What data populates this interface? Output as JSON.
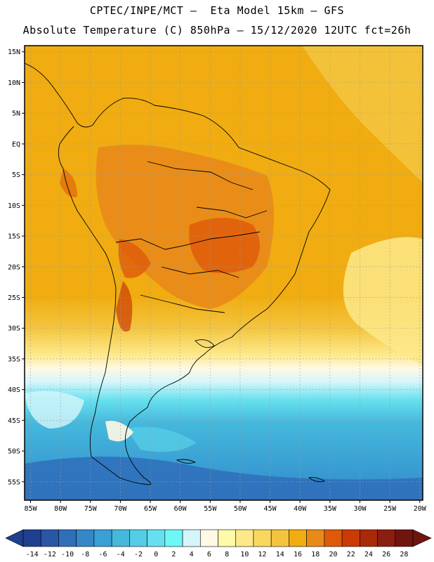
{
  "header": {
    "line1": "CPTEC/INPE/MCT —  Eta Model 15km — GFS",
    "line2": "Absolute Temperature (C) 850hPa — 15/12/2020 12UTC fct=26h"
  },
  "map": {
    "lat_range": [
      -58,
      16
    ],
    "lon_range": [
      -86,
      -19.5
    ],
    "lat_ticks": [
      {
        "value": 15,
        "label": "15N"
      },
      {
        "value": 10,
        "label": "10N"
      },
      {
        "value": 5,
        "label": "5N"
      },
      {
        "value": 0,
        "label": "EQ"
      },
      {
        "value": -5,
        "label": "5S"
      },
      {
        "value": -10,
        "label": "10S"
      },
      {
        "value": -15,
        "label": "15S"
      },
      {
        "value": -20,
        "label": "20S"
      },
      {
        "value": -25,
        "label": "25S"
      },
      {
        "value": -30,
        "label": "30S"
      },
      {
        "value": -35,
        "label": "35S"
      },
      {
        "value": -40,
        "label": "40S"
      },
      {
        "value": -45,
        "label": "45S"
      },
      {
        "value": -50,
        "label": "50S"
      },
      {
        "value": -55,
        "label": "55S"
      }
    ],
    "lon_ticks": [
      {
        "value": -85,
        "label": "85W"
      },
      {
        "value": -80,
        "label": "80W"
      },
      {
        "value": -75,
        "label": "75W"
      },
      {
        "value": -70,
        "label": "70W"
      },
      {
        "value": -65,
        "label": "65W"
      },
      {
        "value": -60,
        "label": "60W"
      },
      {
        "value": -55,
        "label": "55W"
      },
      {
        "value": -50,
        "label": "50W"
      },
      {
        "value": -45,
        "label": "45W"
      },
      {
        "value": -40,
        "label": "40W"
      },
      {
        "value": -35,
        "label": "35W"
      },
      {
        "value": -30,
        "label": "30W"
      },
      {
        "value": -25,
        "label": "25W"
      },
      {
        "value": -20,
        "label": "20W"
      }
    ],
    "grid": "dotted"
  },
  "colorbar": {
    "labels": [
      "-14",
      "-12",
      "-10",
      "-8",
      "-6",
      "-4",
      "-2",
      "0",
      "2",
      "4",
      "6",
      "8",
      "10",
      "12",
      "14",
      "16",
      "18",
      "20",
      "22",
      "24",
      "26",
      "28"
    ],
    "colors": [
      "#1f3f8f",
      "#2a56a6",
      "#2f6fba",
      "#3488c8",
      "#3aa0d4",
      "#45b8dc",
      "#55cde6",
      "#66e0ee",
      "#6ff6f6",
      "#d4f6fa",
      "#fff8e4",
      "#fefaa8",
      "#fde98a",
      "#f8d85e",
      "#f3c43e",
      "#f0ac10",
      "#e88a1a",
      "#de5a0a",
      "#cc3a06",
      "#a82a06",
      "#8a1e10",
      "#701410"
    ]
  },
  "colors": {
    "frame": "#000000",
    "coast": "#000000",
    "grid": "#9a9a9a"
  }
}
